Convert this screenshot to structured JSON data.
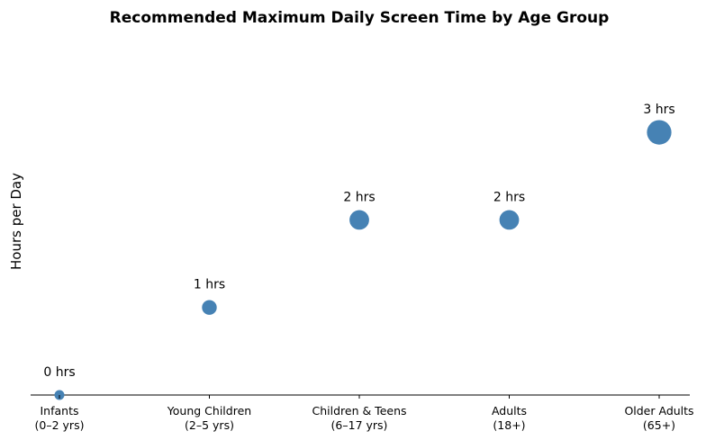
{
  "chart_data": {
    "type": "scatter",
    "title": "Recommended Maximum Daily Screen Time by Age Group",
    "xlabel": "",
    "ylabel": "Hours per Day",
    "ylim": [
      0,
      4.2
    ],
    "categories": [
      [
        "Infants",
        "(0–2 yrs)"
      ],
      [
        "Young Children",
        "(2–5 yrs)"
      ],
      [
        "Children & Teens",
        "(6–17 yrs)"
      ],
      [
        "Adults",
        "(18+)"
      ],
      [
        "Older Adults",
        "(65+)"
      ]
    ],
    "values": [
      0,
      1,
      2,
      2,
      3
    ],
    "value_labels": [
      "0 hrs",
      "1 hrs",
      "2 hrs",
      "2 hrs",
      "3 hrs"
    ],
    "marker_color": "#4682b4",
    "grid": false,
    "legend": "none"
  }
}
